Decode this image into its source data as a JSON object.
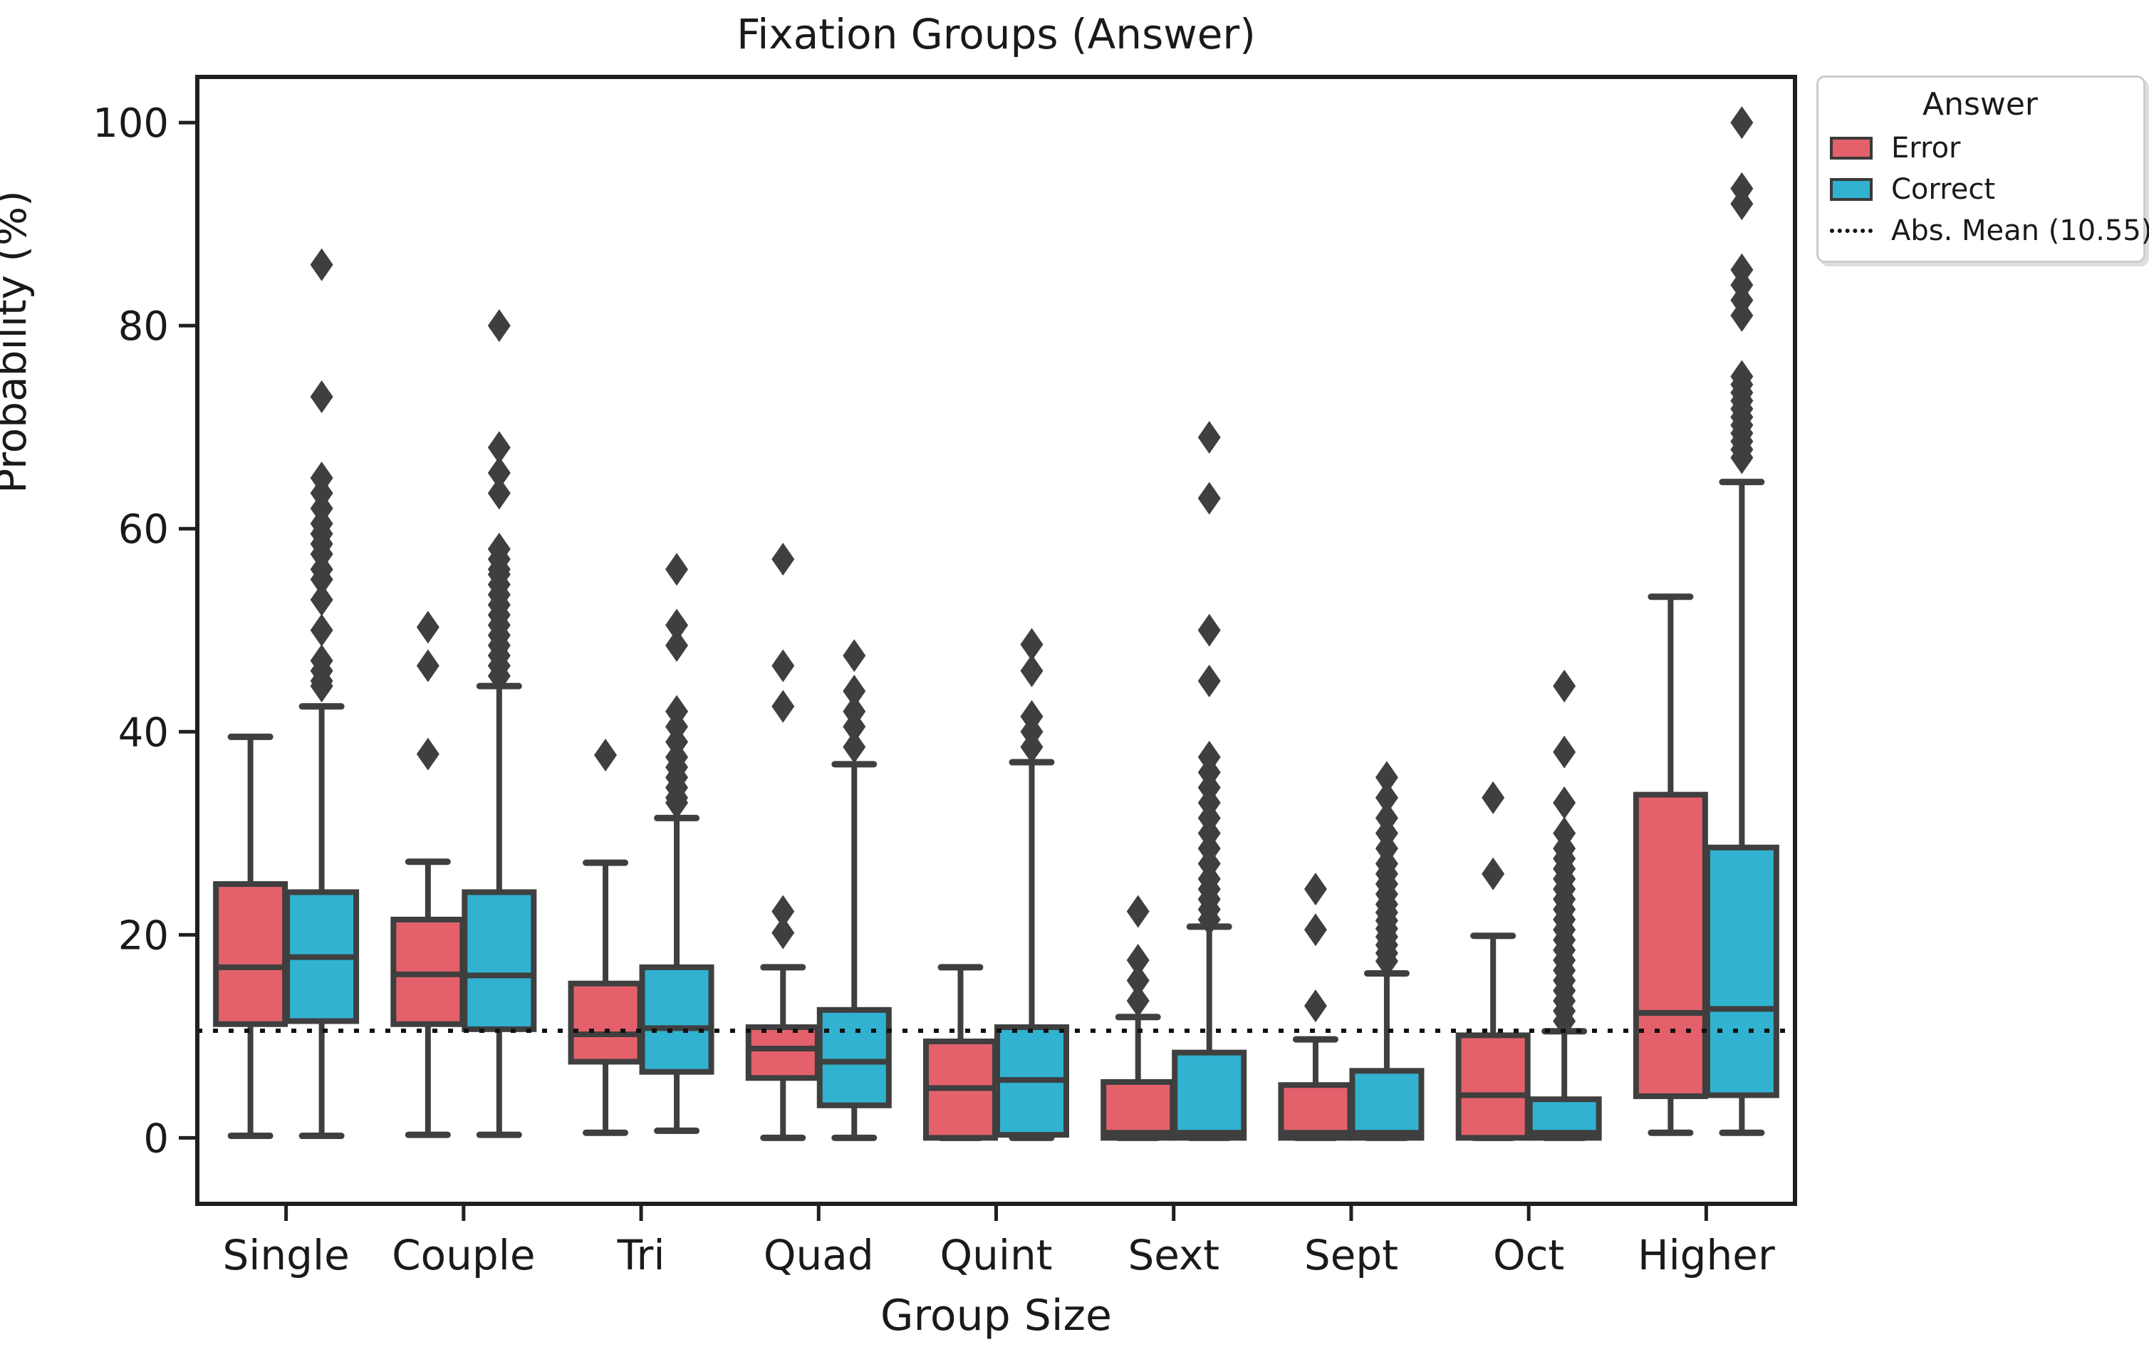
{
  "chart_data": {
    "type": "grouped_boxplot",
    "title": "Fixation Groups (Answer)",
    "xlabel": "Group Size",
    "ylabel": "Probability (%)",
    "categories": [
      "Single",
      "Couple",
      "Tri",
      "Quad",
      "Quint",
      "Sext",
      "Sept",
      "Oct",
      "Higher"
    ],
    "yticks": [
      0,
      20,
      40,
      60,
      80,
      100
    ],
    "ylim": [
      -6.5,
      104.5
    ],
    "grid": false,
    "legend_position": "outside-upper-right",
    "line_color": "#3f3f3f",
    "marker": "thin-diamond",
    "mean_line": {
      "label": "Abs. Mean (10.55)",
      "value": 10.55,
      "style": "dotted",
      "color": "#111111"
    },
    "series": [
      {
        "name": "Error",
        "color": "#e4616b",
        "boxes": [
          {
            "whislo": 0.2,
            "q1": 11.2,
            "med": 16.8,
            "q3": 25.0,
            "whishi": 39.5,
            "outliers": []
          },
          {
            "whislo": 0.3,
            "q1": 11.2,
            "med": 16.1,
            "q3": 21.5,
            "whishi": 27.2,
            "outliers": [
              50.3,
              46.5,
              37.8
            ]
          },
          {
            "whislo": 0.5,
            "q1": 7.5,
            "med": 10.2,
            "q3": 15.2,
            "whishi": 27.1,
            "outliers": [
              37.7
            ]
          },
          {
            "whislo": 0.0,
            "q1": 5.9,
            "med": 8.8,
            "q3": 10.9,
            "whishi": 16.8,
            "outliers": [
              57.0,
              46.5,
              42.5,
              22.3,
              20.2
            ]
          },
          {
            "whislo": 0.0,
            "q1": 0.0,
            "med": 4.9,
            "q3": 9.5,
            "whishi": 16.8,
            "outliers": []
          },
          {
            "whislo": 0.0,
            "q1": 0.0,
            "med": 0.5,
            "q3": 5.5,
            "whishi": 11.9,
            "outliers": [
              22.3,
              17.5,
              15.5,
              13.5
            ]
          },
          {
            "whislo": 0.0,
            "q1": 0.0,
            "med": 0.5,
            "q3": 5.2,
            "whishi": 9.7,
            "outliers": [
              24.5,
              20.5,
              13.0
            ]
          },
          {
            "whislo": 0.0,
            "q1": 0.0,
            "med": 4.2,
            "q3": 10.1,
            "whishi": 19.9,
            "outliers": [
              33.5,
              26.0
            ]
          },
          {
            "whislo": 0.5,
            "q1": 4.1,
            "med": 12.3,
            "q3": 33.8,
            "whishi": 53.3,
            "outliers": []
          }
        ]
      },
      {
        "name": "Correct",
        "color": "#31b2d0",
        "boxes": [
          {
            "whislo": 0.2,
            "q1": 11.5,
            "med": 17.8,
            "q3": 24.2,
            "whishi": 42.5,
            "outliers": [
              86,
              73,
              65,
              63.5,
              62,
              60.5,
              59.5,
              58.5,
              57.5,
              56,
              55,
              53,
              50,
              47,
              46,
              45,
              44.5
            ]
          },
          {
            "whislo": 0.3,
            "q1": 10.7,
            "med": 16.0,
            "q3": 24.2,
            "whishi": 44.5,
            "outliers": [
              80,
              68,
              65.5,
              63.5,
              58,
              57,
              56,
              55.5,
              54.5,
              53.5,
              52.5,
              51.5,
              50.5,
              49.5,
              48.5,
              47.5,
              46.5,
              45.5
            ]
          },
          {
            "whislo": 0.7,
            "q1": 6.5,
            "med": 10.8,
            "q3": 16.8,
            "whishi": 31.5,
            "outliers": [
              56,
              50.5,
              48.5,
              42,
              40.5,
              39,
              37.5,
              36.5,
              35.5,
              34.5,
              33.5,
              33
            ]
          },
          {
            "whislo": 0.0,
            "q1": 3.2,
            "med": 7.5,
            "q3": 12.6,
            "whishi": 36.8,
            "outliers": [
              47.5,
              44,
              42,
              40.5,
              38.5
            ]
          },
          {
            "whislo": 0.0,
            "q1": 0.3,
            "med": 5.7,
            "q3": 10.9,
            "whishi": 37.0,
            "outliers": [
              48.6,
              46,
              41.5,
              40,
              38.5
            ]
          },
          {
            "whislo": 0.0,
            "q1": 0.0,
            "med": 0.5,
            "q3": 8.4,
            "whishi": 20.8,
            "outliers": [
              69,
              63,
              50,
              45,
              37.5,
              36,
              34.5,
              33,
              31.5,
              30,
              28.5,
              27,
              25.5,
              24.5,
              23.5,
              22.5,
              21.5
            ]
          },
          {
            "whislo": 0.0,
            "q1": 0.0,
            "med": 0.5,
            "q3": 6.6,
            "whishi": 16.2,
            "outliers": [
              35.5,
              33.5,
              31.5,
              30,
              28.5,
              27,
              26,
              25,
              24,
              23,
              22.2,
              21.4,
              20.6,
              19.8,
              19,
              18.2,
              17.4
            ]
          },
          {
            "whislo": 0.0,
            "q1": 0.0,
            "med": 0.5,
            "q3": 3.8,
            "whishi": 10.5,
            "outliers": [
              44.5,
              38,
              33,
              30,
              28.5,
              27.5,
              26.5,
              25.5,
              24.5,
              23.5,
              22.5,
              21.5,
              20.5,
              19.5,
              18.5,
              17.5,
              16.5,
              15.5,
              14.5,
              13.5,
              12.5,
              11.5
            ]
          },
          {
            "whislo": 0.5,
            "q1": 4.2,
            "med": 12.7,
            "q3": 28.6,
            "whishi": 64.6,
            "outliers": [
              100,
              93.5,
              92,
              85.5,
              84,
              82.5,
              81,
              75,
              74.2,
              73.4,
              72.6,
              71.8,
              71,
              70.2,
              69.4,
              68.6,
              67.8,
              67
            ]
          }
        ]
      }
    ]
  },
  "legend": {
    "title": "Answer",
    "items": [
      {
        "label": "Error",
        "swatch": "box",
        "color": "#e4616b"
      },
      {
        "label": "Correct",
        "swatch": "box",
        "color": "#31b2d0"
      },
      {
        "label": "Abs. Mean (10.55)",
        "swatch": "dotted-line",
        "color": "#111111"
      }
    ]
  }
}
